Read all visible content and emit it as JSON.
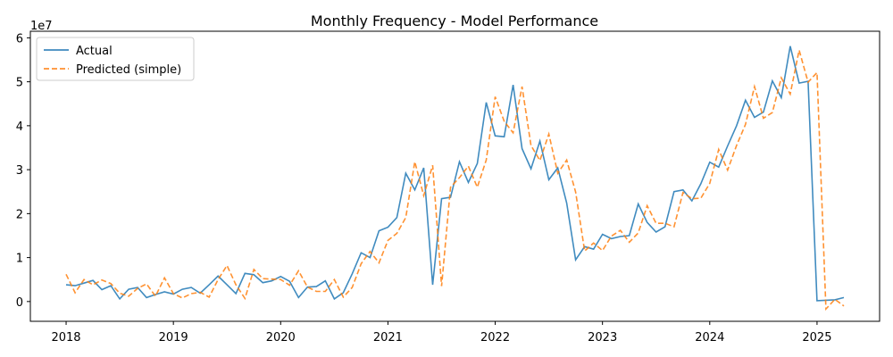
{
  "chart_data": {
    "type": "line",
    "title": "Monthly Frequency - Model Performance",
    "xlabel": "",
    "ylabel": "",
    "y_offset_label": "1e7",
    "x_ticks": [
      "2018",
      "2019",
      "2020",
      "2021",
      "2022",
      "2023",
      "2024",
      "2025"
    ],
    "y_ticks": [
      0,
      1,
      2,
      3,
      4,
      5,
      6
    ],
    "xlim": [
      "2017-09",
      "2025-08"
    ],
    "ylim": [
      -0.45,
      6.15
    ],
    "y_unit_scale": 10000000,
    "legend_position": "top-left",
    "grid": false,
    "x": [
      "2018-01",
      "2018-02",
      "2018-03",
      "2018-04",
      "2018-05",
      "2018-06",
      "2018-07",
      "2018-08",
      "2018-09",
      "2018-10",
      "2018-11",
      "2018-12",
      "2019-01",
      "2019-02",
      "2019-03",
      "2019-04",
      "2019-05",
      "2019-06",
      "2019-07",
      "2019-08",
      "2019-09",
      "2019-10",
      "2019-11",
      "2019-12",
      "2020-01",
      "2020-02",
      "2020-03",
      "2020-04",
      "2020-05",
      "2020-06",
      "2020-07",
      "2020-08",
      "2020-09",
      "2020-10",
      "2020-11",
      "2020-12",
      "2021-01",
      "2021-02",
      "2021-03",
      "2021-04",
      "2021-05",
      "2021-06",
      "2021-07",
      "2021-08",
      "2021-09",
      "2021-10",
      "2021-11",
      "2021-12",
      "2022-01",
      "2022-02",
      "2022-03",
      "2022-04",
      "2022-05",
      "2022-06",
      "2022-07",
      "2022-08",
      "2022-09",
      "2022-10",
      "2022-11",
      "2022-12",
      "2023-01",
      "2023-02",
      "2023-03",
      "2023-04",
      "2023-05",
      "2023-06",
      "2023-07",
      "2023-08",
      "2023-09",
      "2023-10",
      "2023-11",
      "2023-12",
      "2024-01",
      "2024-02",
      "2024-03",
      "2024-04",
      "2024-05",
      "2024-06",
      "2024-07",
      "2024-08",
      "2024-09",
      "2024-10",
      "2024-11",
      "2024-12",
      "2025-01",
      "2025-02",
      "2025-03",
      "2025-04"
    ],
    "series": [
      {
        "name": "Actual",
        "color": "#1f77b4",
        "style": "solid",
        "values": [
          0.38,
          0.36,
          0.42,
          0.48,
          0.27,
          0.36,
          0.06,
          0.28,
          0.32,
          0.09,
          0.16,
          0.22,
          0.17,
          0.28,
          0.32,
          0.19,
          0.38,
          0.58,
          0.38,
          0.18,
          0.64,
          0.61,
          0.43,
          0.47,
          0.57,
          0.46,
          0.09,
          0.33,
          0.34,
          0.47,
          0.06,
          0.2,
          0.63,
          1.11,
          1.0,
          1.61,
          1.69,
          1.91,
          2.92,
          2.54,
          3.04,
          0.38,
          2.34,
          2.37,
          3.18,
          2.71,
          3.14,
          4.53,
          3.77,
          3.75,
          4.93,
          3.48,
          3.02,
          3.65,
          2.77,
          3.04,
          2.24,
          0.95,
          1.25,
          1.19,
          1.53,
          1.43,
          1.48,
          1.5,
          2.22,
          1.8,
          1.58,
          1.7,
          2.5,
          2.54,
          2.29,
          2.68,
          3.17,
          3.06,
          3.54,
          4.0,
          4.58,
          4.19,
          4.31,
          5.02,
          4.64,
          5.81,
          4.97,
          5.01,
          0.02,
          0.03,
          0.04,
          0.09
        ]
      },
      {
        "name": "Predicted (simple)",
        "color": "#ff7f0e",
        "style": "dashed",
        "values": [
          0.62,
          0.2,
          0.5,
          0.38,
          0.49,
          0.41,
          0.19,
          0.12,
          0.3,
          0.4,
          0.12,
          0.54,
          0.18,
          0.08,
          0.18,
          0.21,
          0.1,
          0.5,
          0.82,
          0.38,
          0.07,
          0.73,
          0.52,
          0.51,
          0.5,
          0.37,
          0.7,
          0.33,
          0.23,
          0.23,
          0.5,
          0.1,
          0.32,
          0.86,
          1.14,
          0.88,
          1.39,
          1.55,
          1.91,
          3.18,
          2.41,
          3.1,
          0.35,
          2.6,
          2.82,
          3.08,
          2.6,
          3.22,
          4.66,
          4.1,
          3.84,
          4.89,
          3.55,
          3.21,
          3.81,
          2.92,
          3.22,
          2.49,
          1.15,
          1.33,
          1.16,
          1.49,
          1.62,
          1.35,
          1.56,
          2.18,
          1.78,
          1.78,
          1.7,
          2.48,
          2.34,
          2.35,
          2.69,
          3.46,
          2.99,
          3.55,
          4.03,
          4.89,
          4.17,
          4.3,
          5.09,
          4.72,
          5.72,
          4.99,
          5.21,
          -0.17,
          0.05,
          -0.1
        ]
      }
    ]
  }
}
